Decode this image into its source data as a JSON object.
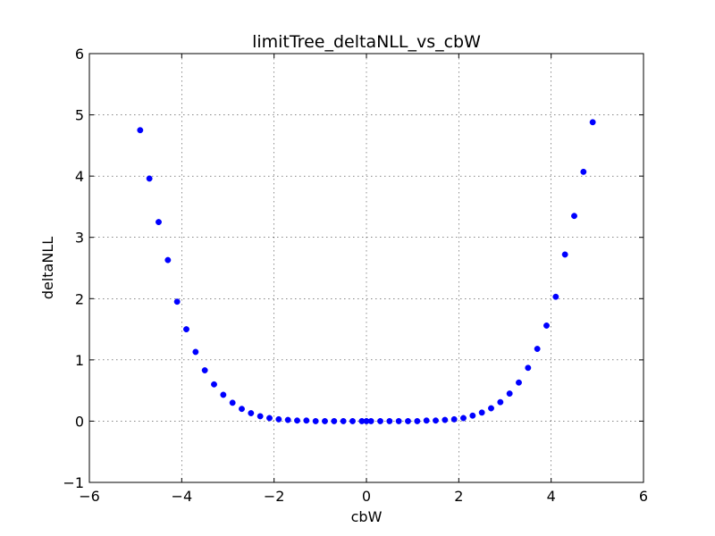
{
  "chart_data": {
    "type": "scatter",
    "title": "limitTree_deltaNLL_vs_cbW",
    "xlabel": "cbW",
    "ylabel": "deltaNLL",
    "xlim": [
      -6,
      6
    ],
    "ylim": [
      -1,
      6
    ],
    "xticks": [
      -6,
      -4,
      -2,
      0,
      2,
      4,
      6
    ],
    "yticks": [
      -1,
      0,
      1,
      2,
      3,
      4,
      5,
      6
    ],
    "xtick_labels": [
      "−6",
      "−4",
      "−2",
      "0",
      "2",
      "4",
      "6"
    ],
    "ytick_labels": [
      "−1",
      "0",
      "1",
      "2",
      "3",
      "4",
      "5",
      "6"
    ],
    "grid": true,
    "marker_color": "#0000ff",
    "series": [
      {
        "x": [
          -4.9,
          -4.7,
          -4.5,
          -4.3,
          -4.1,
          -3.9,
          -3.7,
          -3.5,
          -3.3,
          -3.1,
          -2.9,
          -2.7,
          -2.5,
          -2.3,
          -2.1,
          -1.9,
          -1.7,
          -1.5,
          -1.3,
          -1.1,
          -0.9,
          -0.7,
          -0.5,
          -0.3,
          -0.1,
          0.0,
          0.1,
          0.3,
          0.5,
          0.7,
          0.9,
          1.1,
          1.3,
          1.5,
          1.7,
          1.9,
          2.1,
          2.3,
          2.5,
          2.7,
          2.9,
          3.1,
          3.3,
          3.5,
          3.7,
          3.9,
          4.1,
          4.3,
          4.5,
          4.7,
          4.9
        ],
        "y": [
          4.75,
          3.96,
          3.25,
          2.63,
          1.95,
          1.5,
          1.13,
          0.83,
          0.6,
          0.43,
          0.3,
          0.2,
          0.13,
          0.08,
          0.05,
          0.03,
          0.02,
          0.01,
          0.01,
          0.0,
          0.0,
          0.0,
          0.0,
          0.0,
          0.0,
          0.0,
          0.0,
          0.0,
          0.0,
          0.0,
          0.0,
          0.0,
          0.01,
          0.01,
          0.02,
          0.03,
          0.05,
          0.09,
          0.14,
          0.21,
          0.31,
          0.45,
          0.63,
          0.87,
          1.18,
          1.56,
          2.03,
          2.72,
          3.35,
          4.07,
          4.88
        ]
      }
    ]
  }
}
